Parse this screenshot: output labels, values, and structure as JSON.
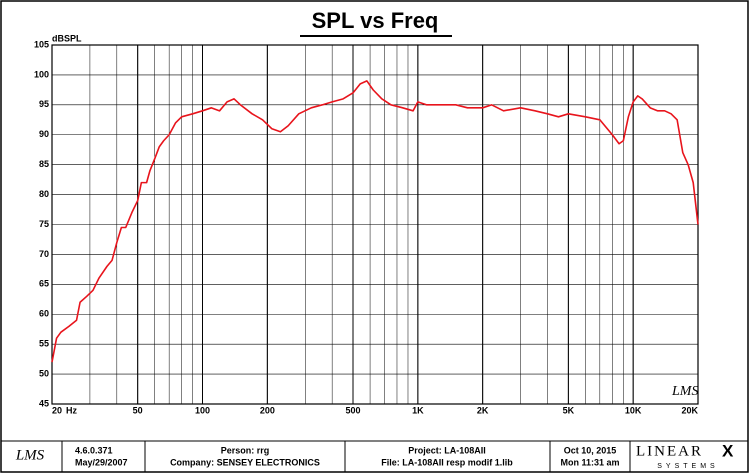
{
  "chart_data": {
    "type": "line",
    "title": "SPL vs Freq",
    "y_label": "dBSPL",
    "x_unit": "Hz",
    "watermark": "LMS",
    "xscale": "log",
    "grid": true,
    "xlim": [
      20,
      20000
    ],
    "ylim": [
      45,
      105
    ],
    "xticks": [
      {
        "value": 20,
        "label": "20"
      },
      50,
      100,
      200,
      500,
      {
        "value": 1000,
        "label": "1K"
      },
      {
        "value": 2000,
        "label": "2K"
      },
      {
        "value": 5000,
        "label": "5K"
      },
      {
        "value": 10000,
        "label": "10K"
      },
      {
        "value": 20000,
        "label": "20K"
      }
    ],
    "yticks": [
      45,
      50,
      55,
      60,
      65,
      70,
      75,
      80,
      85,
      90,
      95,
      100,
      105
    ],
    "x": [
      20,
      21,
      22,
      24,
      26,
      27,
      29,
      31,
      33,
      36,
      38,
      40,
      42,
      44,
      47,
      50,
      52,
      55,
      57,
      60,
      63,
      66,
      70,
      75,
      80,
      90,
      100,
      110,
      120,
      130,
      140,
      150,
      170,
      190,
      210,
      230,
      250,
      280,
      320,
      360,
      400,
      450,
      500,
      540,
      580,
      620,
      680,
      750,
      850,
      950,
      1000,
      1100,
      1300,
      1500,
      1700,
      2000,
      2200,
      2500,
      3000,
      3500,
      4000,
      4500,
      5000,
      6000,
      7000,
      8000,
      8600,
      9000,
      9500,
      10000,
      10500,
      11000,
      12000,
      13000,
      14000,
      15000,
      16000,
      17000,
      18000,
      19000,
      20000
    ],
    "series": [
      {
        "color": "#e8141c",
        "values": [
          52,
          56,
          57,
          58,
          59,
          62,
          63,
          64,
          66,
          68,
          69,
          72,
          74.5,
          74.5,
          77,
          79,
          82,
          82,
          84,
          86,
          88,
          89,
          90,
          92,
          93,
          93.5,
          94,
          94.5,
          94,
          95.5,
          96,
          95,
          93.5,
          92.5,
          91,
          90.5,
          91.5,
          93.5,
          94.5,
          95,
          95.5,
          96,
          97,
          98.5,
          99,
          97.5,
          96,
          95,
          94.5,
          94,
          95.5,
          95,
          95,
          95,
          94.5,
          94.5,
          95,
          94,
          94.5,
          94,
          93.5,
          93,
          93.5,
          93,
          92.5,
          90,
          88.5,
          89,
          93,
          95.5,
          96.5,
          96,
          94.5,
          94,
          94,
          93.5,
          92.5,
          87,
          85,
          82,
          75
        ]
      }
    ]
  },
  "footer": {
    "logo": "LMS",
    "version": "4.6.0.371",
    "build_date": "May/29/2007",
    "person": "Person: rrg",
    "company": "Company: SENSEY ELECTRONICS",
    "project": "Project: LA-108AII",
    "file": "File: LA-108AII resp modif 1.lib",
    "date": "Oct 10, 2015",
    "time": "Mon 11:31 am",
    "brand": "LINEAR",
    "brand_mark": "X",
    "brand_sub": "SYSTEMS"
  }
}
